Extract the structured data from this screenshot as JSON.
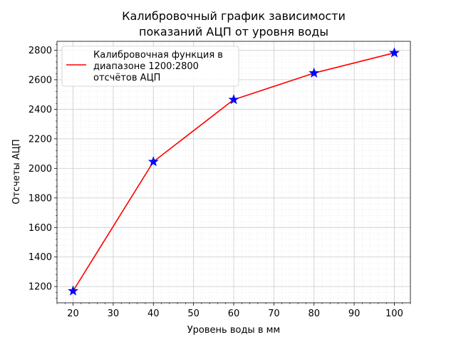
{
  "chart_data": {
    "type": "line",
    "title": [
      "Калибровочный график зависимости",
      "показаний АЦП от уровня воды"
    ],
    "xlabel": "Уровень воды в мм",
    "ylabel": "Отсчеты АЦП",
    "xlim": [
      16,
      104
    ],
    "ylim": [
      1090,
      2860
    ],
    "xticks": [
      20,
      30,
      40,
      50,
      60,
      70,
      80,
      90,
      100
    ],
    "yticks": [
      1200,
      1400,
      1600,
      1800,
      2000,
      2200,
      2400,
      2600,
      2800
    ],
    "grid": true,
    "minor_grid": true,
    "legend_position": "top-left",
    "series": [
      {
        "name": [
          "Калибровочная функция в",
          "диапазоне 1200:2800",
          "отсчётов АЦП"
        ],
        "type": "line",
        "color": "#ff0000",
        "x": [
          20,
          40,
          60,
          80,
          100
        ],
        "y": [
          1170,
          2045,
          2465,
          2645,
          2782
        ]
      },
      {
        "type": "scatter",
        "marker": "star",
        "color": "#0000ff",
        "x": [
          20,
          40,
          60,
          80,
          100
        ],
        "y": [
          1170,
          2045,
          2465,
          2645,
          2782
        ]
      }
    ]
  }
}
